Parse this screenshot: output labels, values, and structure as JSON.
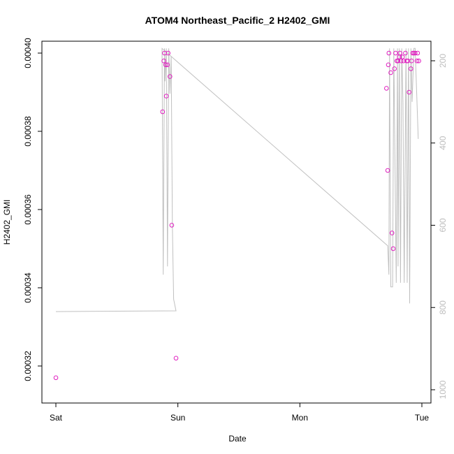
{
  "chart_data": {
    "type": "scatter",
    "title": "ATOM4 Northeast_Pacific_2 H2402_GMI",
    "xlabel": "Date",
    "ylabel": "H2402_GMI",
    "x_ticks": [
      "Sat",
      "Sun",
      "Mon",
      "Tue"
    ],
    "y_ticks": [
      "0.00032",
      "0.00034",
      "0.00036",
      "0.00038",
      "0.00040"
    ],
    "y_right_ticks": [
      "200",
      "400",
      "600",
      "800",
      "1000"
    ],
    "xlim_days": [
      0,
      3.05
    ],
    "ylim": [
      0.000314,
      0.000401
    ],
    "y_right_lim": [
      1020,
      170
    ],
    "series": [
      {
        "kind": "points",
        "color": "#e020c0",
        "x_days": [
          0.0,
          0.875,
          0.885,
          0.89,
          0.9,
          0.905,
          0.915,
          0.92,
          0.935,
          0.95,
          0.985,
          2.71,
          2.72,
          2.725,
          2.73,
          2.745,
          2.755,
          2.765,
          2.775,
          2.785,
          2.795,
          2.805,
          2.815,
          2.82,
          2.83,
          2.84,
          2.85,
          2.865,
          2.875,
          2.885,
          2.895,
          2.91,
          2.915,
          2.925,
          2.935,
          2.945,
          2.96,
          2.965,
          2.975
        ],
        "values": [
          0.000317,
          0.000385,
          0.000398,
          0.0004,
          0.000397,
          0.000389,
          0.000397,
          0.0004,
          0.000394,
          0.000356,
          0.000322,
          0.000391,
          0.00037,
          0.000397,
          0.0004,
          0.000395,
          0.000354,
          0.00035,
          0.000396,
          0.0004,
          0.000398,
          0.000398,
          0.000399,
          0.0004,
          0.000398,
          0.000399,
          0.000398,
          0.0004,
          0.000398,
          0.000398,
          0.00039,
          0.000396,
          0.000398,
          0.0004,
          0.0004,
          0.0004,
          0.000398,
          0.0004,
          0.000398
        ]
      },
      {
        "kind": "line",
        "color": "#c0c0c0",
        "axis": "right",
        "x_days": [
          0.0,
          0.985,
          0.965,
          0.955,
          0.945,
          0.935,
          0.925,
          0.915,
          0.905,
          0.895,
          0.89,
          0.88,
          0.87,
          2.72,
          2.73,
          2.735,
          2.745,
          2.76,
          2.77,
          2.775,
          2.79,
          2.8,
          2.805,
          2.815,
          2.825,
          2.835,
          2.845,
          2.855,
          2.87,
          2.88,
          2.89,
          2.9,
          2.91,
          2.92,
          2.935,
          2.945,
          2.97
        ],
        "values": [
          810,
          808,
          780,
          600,
          190,
          280,
          170,
          700,
          170,
          250,
          170,
          720,
          170,
          650,
          720,
          170,
          750,
          750,
          170,
          320,
          740,
          170,
          700,
          170,
          740,
          170,
          300,
          740,
          170,
          740,
          170,
          790,
          170,
          300,
          170,
          170,
          390
        ]
      }
    ]
  }
}
